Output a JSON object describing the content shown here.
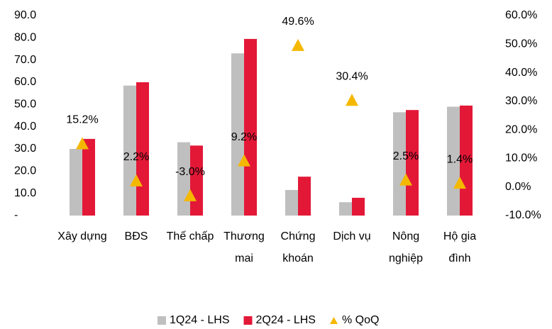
{
  "chart_data": {
    "type": "bar_line_combo",
    "categories": [
      "Xây dựng",
      "BĐS",
      "Thế chấp",
      "Thương\nmai",
      "Chứng\nkhoán",
      "Dịch vụ",
      "Nông\nnghiệp",
      "Hộ gia\nđình"
    ],
    "series": [
      {
        "name": "1Q24 - LHS",
        "color": "#bfbfbf",
        "type": "bar",
        "values": [
          30,
          58.5,
          33,
          73,
          11.5,
          6,
          46.5,
          49
        ]
      },
      {
        "name": "2Q24 - LHS",
        "color": "#e31837",
        "type": "bar",
        "values": [
          34.5,
          60,
          31.5,
          79.5,
          17.5,
          8,
          47.5,
          49.5
        ]
      },
      {
        "name": "% QoQ",
        "color": "#f5b800",
        "type": "scatter",
        "axis": "y2",
        "values": [
          15.2,
          2.2,
          -3.0,
          9.2,
          49.6,
          30.4,
          2.5,
          1.4
        ],
        "value_labels": [
          "15.2%",
          "2.2%",
          "-3.0%",
          "9.2%",
          "49.6%",
          "30.4%",
          "2.5%",
          "1.4%"
        ]
      }
    ],
    "ylim": [
      0,
      90
    ],
    "yticks": [
      {
        "value": 0,
        "label": "-"
      },
      {
        "value": 10,
        "label": "10.0"
      },
      {
        "value": 20,
        "label": "20.0"
      },
      {
        "value": 30,
        "label": "30.0"
      },
      {
        "value": 40,
        "label": "40.0"
      },
      {
        "value": 50,
        "label": "50.0"
      },
      {
        "value": 60,
        "label": "60.0"
      },
      {
        "value": 70,
        "label": "70.0"
      },
      {
        "value": 80,
        "label": "80.0"
      },
      {
        "value": 90,
        "label": "90.0"
      }
    ],
    "y2lim": [
      -10,
      60
    ],
    "y2ticks": [
      {
        "value": -10,
        "label": "-10.0%"
      },
      {
        "value": 0,
        "label": "0.0%"
      },
      {
        "value": 10,
        "label": "10.0%"
      },
      {
        "value": 20,
        "label": "20.0%"
      },
      {
        "value": 30,
        "label": "30.0%"
      },
      {
        "value": 40,
        "label": "40.0%"
      },
      {
        "value": 50,
        "label": "50.0%"
      },
      {
        "value": 60,
        "label": "60.0%"
      }
    ],
    "legend": "bottom"
  }
}
